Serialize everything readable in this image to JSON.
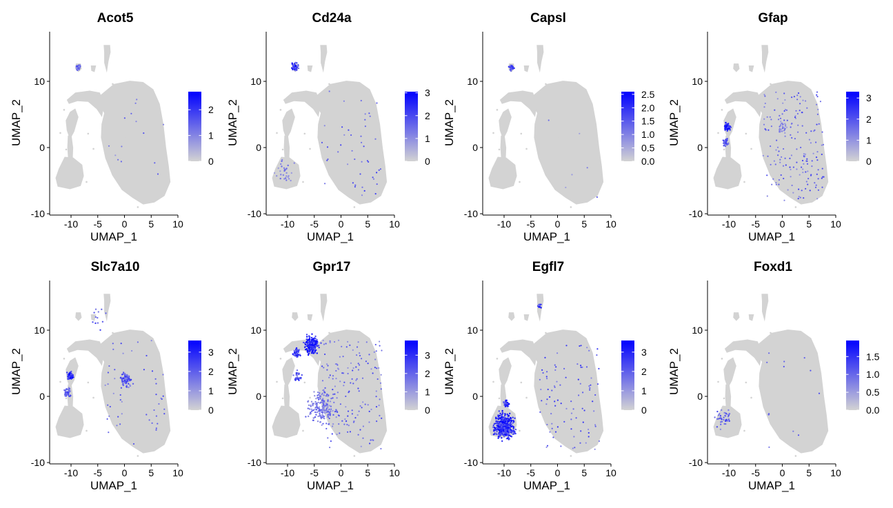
{
  "colors": {
    "low": "#d3d3d3",
    "high": "#0000ff",
    "grey_cells": "#d3d3d3"
  },
  "chart_data": [
    {
      "type": "scatter",
      "title": "Acot5",
      "xlabel": "UMAP_1",
      "ylabel": "UMAP_2",
      "xlim": [
        -14,
        10
      ],
      "ylim": [
        -10.2,
        17.5
      ],
      "xticks": [
        "-10",
        "-5",
        "0",
        "5",
        "10"
      ],
      "yticks": [
        "-10",
        "0",
        "10"
      ],
      "legend": {
        "max": 2.7,
        "ticks": [
          {
            "v": 0,
            "label": "0"
          },
          {
            "v": 1,
            "label": "1"
          },
          {
            "v": 2,
            "label": "2"
          }
        ]
      },
      "highlights": [
        {
          "region": "top-small",
          "x": -8.6,
          "y": 12.1,
          "spread": 0.55,
          "n": 24,
          "level": 0.55
        }
      ],
      "scatter": {
        "n": 14,
        "level": 0.45
      }
    },
    {
      "type": "scatter",
      "title": "Cd24a",
      "xlabel": "UMAP_1",
      "ylabel": "UMAP_2",
      "xlim": [
        -14,
        10
      ],
      "ylim": [
        -10.2,
        17.5
      ],
      "xticks": [
        "-10",
        "-5",
        "0",
        "5",
        "10"
      ],
      "yticks": [
        "-10",
        "0",
        "10"
      ],
      "legend": {
        "max": 3.05,
        "ticks": [
          {
            "v": 0,
            "label": "0"
          },
          {
            "v": 1,
            "label": "1"
          },
          {
            "v": 2,
            "label": "2"
          },
          {
            "v": 3,
            "label": "3"
          }
        ]
      },
      "highlights": [
        {
          "region": "top-small",
          "x": -8.6,
          "y": 12.2,
          "spread": 0.6,
          "n": 45,
          "level": 0.8
        },
        {
          "region": "left-blob",
          "x": -10.5,
          "y": -3.5,
          "spread": 1.6,
          "n": 30,
          "level": 0.4
        }
      ],
      "scatter": {
        "n": 45,
        "level": 0.55
      }
    },
    {
      "type": "scatter",
      "title": "Capsl",
      "xlabel": "UMAP_1",
      "ylabel": "UMAP_2",
      "xlim": [
        -14,
        10
      ],
      "ylim": [
        -10.2,
        17.5
      ],
      "xticks": [
        "-10",
        "-5",
        "0",
        "5",
        "10"
      ],
      "yticks": [
        "-10",
        "0",
        "10"
      ],
      "legend": {
        "max": 2.6,
        "ticks": [
          {
            "v": 0,
            "label": "0.0"
          },
          {
            "v": 0.5,
            "label": "0.5"
          },
          {
            "v": 1,
            "label": "1.0"
          },
          {
            "v": 1.5,
            "label": "1.5"
          },
          {
            "v": 2,
            "label": "2.0"
          },
          {
            "v": 2.5,
            "label": "2.5"
          }
        ]
      },
      "highlights": [
        {
          "region": "top-small",
          "x": -8.6,
          "y": 12.1,
          "spread": 0.55,
          "n": 30,
          "level": 0.7
        }
      ],
      "scatter": {
        "n": 6,
        "level": 0.4
      }
    },
    {
      "type": "scatter",
      "title": "Gfap",
      "xlabel": "UMAP_1",
      "ylabel": "UMAP_2",
      "xlim": [
        -14,
        10
      ],
      "ylim": [
        -10.2,
        17.5
      ],
      "xticks": [
        "-10",
        "-5",
        "0",
        "5",
        "10"
      ],
      "yticks": [
        "-10",
        "0",
        "10"
      ],
      "legend": {
        "max": 3.3,
        "ticks": [
          {
            "v": 0,
            "label": "0"
          },
          {
            "v": 1,
            "label": "1"
          },
          {
            "v": 2,
            "label": "2"
          },
          {
            "v": 3,
            "label": "3"
          }
        ]
      },
      "highlights": [
        {
          "region": "left-arm",
          "x": -10.3,
          "y": 3.1,
          "spread": 0.5,
          "n": 80,
          "level": 0.9
        },
        {
          "region": "left-stalk",
          "x": -10.6,
          "y": 0.8,
          "spread": 0.6,
          "n": 30,
          "level": 0.6
        },
        {
          "region": "center",
          "x": 0,
          "y": 3,
          "spread": 1.0,
          "n": 25,
          "level": 0.4
        }
      ],
      "scatter": {
        "n": 170,
        "level": 0.5
      }
    },
    {
      "type": "scatter",
      "title": "Slc7a10",
      "xlabel": "UMAP_1",
      "ylabel": "UMAP_2",
      "xlim": [
        -14,
        10
      ],
      "ylim": [
        -10.2,
        17.5
      ],
      "xticks": [
        "-10",
        "-5",
        "0",
        "5",
        "10"
      ],
      "yticks": [
        "-10",
        "0",
        "10"
      ],
      "legend": {
        "max": 3.6,
        "ticks": [
          {
            "v": 0,
            "label": "0"
          },
          {
            "v": 1,
            "label": "1"
          },
          {
            "v": 2,
            "label": "2"
          },
          {
            "v": 3,
            "label": "3"
          }
        ]
      },
      "highlights": [
        {
          "region": "left-arm",
          "x": -10.1,
          "y": 3.1,
          "spread": 0.5,
          "n": 90,
          "level": 0.95
        },
        {
          "region": "left-stalk",
          "x": -10.6,
          "y": 0.5,
          "spread": 0.7,
          "n": 40,
          "level": 0.6
        },
        {
          "region": "center",
          "x": 0.3,
          "y": 2.6,
          "spread": 1.1,
          "n": 90,
          "level": 0.6
        },
        {
          "region": "top-small",
          "x": -5,
          "y": 11.8,
          "spread": 1.8,
          "n": 12,
          "level": 0.6
        }
      ],
      "scatter": {
        "n": 50,
        "level": 0.5
      }
    },
    {
      "type": "scatter",
      "title": "Gpr17",
      "xlabel": "UMAP_1",
      "ylabel": "UMAP_2",
      "xlim": [
        -14,
        10
      ],
      "ylim": [
        -10.2,
        17.5
      ],
      "xticks": [
        "-10",
        "-5",
        "0",
        "5",
        "10"
      ],
      "yticks": [
        "-10",
        "0",
        "10"
      ],
      "legend": {
        "max": 3.8,
        "ticks": [
          {
            "v": 0,
            "label": "0"
          },
          {
            "v": 1,
            "label": "1"
          },
          {
            "v": 2,
            "label": "2"
          },
          {
            "v": 3,
            "label": "3"
          }
        ]
      },
      "highlights": [
        {
          "region": "top-arc",
          "x": -5.5,
          "y": 7.8,
          "spread": 1.3,
          "n": 220,
          "level": 0.95
        },
        {
          "region": "arc-left",
          "x": -8.3,
          "y": 6.6,
          "spread": 0.7,
          "n": 60,
          "level": 0.8
        },
        {
          "region": "left-body",
          "x": -3.5,
          "y": -1.5,
          "spread": 2.6,
          "n": 180,
          "level": 0.5
        },
        {
          "region": "left-arm",
          "x": -8,
          "y": 3,
          "spread": 0.8,
          "n": 40,
          "level": 0.7
        }
      ],
      "scatter": {
        "n": 150,
        "level": 0.5
      }
    },
    {
      "type": "scatter",
      "title": "Egfl7",
      "xlabel": "UMAP_1",
      "ylabel": "UMAP_2",
      "xlim": [
        -14,
        10
      ],
      "ylim": [
        -10.2,
        17.5
      ],
      "xticks": [
        "-10",
        "-5",
        "0",
        "5",
        "10"
      ],
      "yticks": [
        "-10",
        "0",
        "10"
      ],
      "legend": {
        "max": 3.6,
        "ticks": [
          {
            "v": 0,
            "label": "0"
          },
          {
            "v": 1,
            "label": "1"
          },
          {
            "v": 2,
            "label": "2"
          },
          {
            "v": 3,
            "label": "3"
          }
        ]
      },
      "highlights": [
        {
          "region": "left-blob",
          "x": -10,
          "y": -4.5,
          "spread": 1.8,
          "n": 520,
          "level": 0.85
        },
        {
          "region": "left-stalk",
          "x": -9.6,
          "y": -1,
          "spread": 0.5,
          "n": 40,
          "level": 0.8
        },
        {
          "region": "top-right-small",
          "x": -3.4,
          "y": 13.6,
          "spread": 0.4,
          "n": 12,
          "level": 0.8
        }
      ],
      "scatter": {
        "n": 90,
        "level": 0.55
      }
    },
    {
      "type": "scatter",
      "title": "Foxd1",
      "xlabel": "UMAP_1",
      "ylabel": "UMAP_2",
      "xlim": [
        -14,
        10
      ],
      "ylim": [
        -10.2,
        17.5
      ],
      "xticks": [
        "-10",
        "-5",
        "0",
        "5",
        "10"
      ],
      "yticks": [
        "-10",
        "0",
        "10"
      ],
      "legend": {
        "max": 1.95,
        "ticks": [
          {
            "v": 0,
            "label": "0.0"
          },
          {
            "v": 0.5,
            "label": "0.5"
          },
          {
            "v": 1,
            "label": "1.0"
          },
          {
            "v": 1.5,
            "label": "1.5"
          }
        ]
      },
      "highlights": [
        {
          "region": "left-blob",
          "x": -10.8,
          "y": -3.3,
          "spread": 1.4,
          "n": 40,
          "level": 0.6
        },
        {
          "region": "mid-point",
          "x": -2.5,
          "y": -2.7,
          "spread": 0.2,
          "n": 3,
          "level": 0.7
        }
      ],
      "scatter": {
        "n": 10,
        "level": 0.5
      }
    }
  ]
}
